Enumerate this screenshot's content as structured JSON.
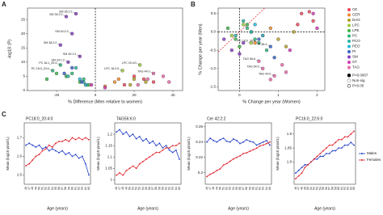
{
  "chart_data": [
    {
      "type": "scatter",
      "panel": "A",
      "xlabel": "% Difference (Men relative to women)",
      "ylabel": "-log10 (P)",
      "xlim": [
        -35,
        45
      ],
      "xticks": [
        -20,
        0,
        20,
        40
      ],
      "ylim": [
        0,
        29
      ],
      "yticks": [
        0,
        5,
        10,
        15,
        20,
        25
      ],
      "reference_lines": {
        "x": 0
      },
      "series": [
        {
          "color": "#e8485b",
          "x": [
            25,
            30,
            15,
            20
          ],
          "y": [
            4,
            3,
            2,
            5
          ]
        },
        {
          "color": "#f08a2c",
          "x": [
            10,
            -5,
            5,
            12
          ],
          "y": [
            3,
            2,
            1.5,
            4
          ]
        },
        {
          "color": "#b5a22a",
          "x": [
            20,
            26,
            18
          ],
          "y": [
            4,
            3,
            2
          ]
        },
        {
          "color": "#9ccc3c",
          "x": [
            23,
            14,
            -3
          ],
          "y": [
            9,
            7,
            2
          ],
          "labels": [
            "LPC 20:4:0",
            "LPC 18:2:0",
            null
          ]
        },
        {
          "color": "#3cb54a",
          "x": [
            -20,
            -25,
            -15,
            -8
          ],
          "y": [
            6,
            4,
            5,
            3
          ]
        },
        {
          "color": "#2fb57a",
          "x": [
            -18,
            -22,
            -12,
            -6,
            -4
          ],
          "y": [
            9,
            7,
            6,
            4,
            2
          ],
          "labels": [
            "PC 16:1_20:4",
            "PC 18:0_20:4",
            null,
            null,
            null
          ]
        },
        {
          "color": "#2ab3a6",
          "x": [
            -10,
            -14,
            -6
          ],
          "y": [
            8,
            5,
            3
          ]
        },
        {
          "color": "#29b6d8",
          "x": [
            -5,
            -8
          ],
          "y": [
            2,
            4
          ]
        },
        {
          "color": "#3a63c8",
          "x": [
            -12,
            -16,
            -7
          ],
          "y": [
            8,
            6,
            3
          ]
        },
        {
          "color": "#8a3fc4",
          "x": [
            -15,
            -10,
            -12,
            -18,
            -8,
            -14
          ],
          "y": [
            26,
            27,
            20,
            16,
            12,
            10
          ],
          "labels": [
            "SM 34:2:2",
            "SM 36:2:2",
            "SM 40:2:2",
            "SM 38:2:2",
            "SM 40:1:2",
            "SM 34:1:2"
          ]
        },
        {
          "color": "#d13bb5",
          "x": [
            5,
            -2
          ],
          "y": [
            1,
            2
          ]
        },
        {
          "color": "#e86aa9",
          "x": [
            30,
            35,
            27,
            38,
            22
          ],
          "y": [
            6,
            5,
            4,
            3,
            2
          ],
          "labels": [
            "TAG 44:0",
            null,
            null,
            null,
            null
          ]
        }
      ]
    },
    {
      "type": "scatter",
      "panel": "B",
      "xlabel": "% Change per year (Women)",
      "ylabel": "% Change per year (Men)",
      "xlim": [
        -0.55,
        2.2
      ],
      "xticks": [
        0,
        1,
        2
      ],
      "ylim": [
        -1.6,
        0.65
      ],
      "yticks": [
        0.5,
        {
          "value": 0,
          "label": "0.0"
        },
        -0.5,
        {
          "value": -1,
          "label": "-1.0"
        },
        -1.5
      ],
      "reference_lines": {
        "x": 0,
        "y": 0
      },
      "identity_line": true,
      "legend": "right",
      "marker_legend": [
        "P<0.0007",
        "Non-sig",
        "P<0.05"
      ],
      "series": [
        {
          "name": "CE",
          "color": "#e8485b",
          "x": [
            1.6,
            1.8,
            1.9,
            1.5
          ],
          "y": [
            0.5,
            0.55,
            0.3,
            0.2
          ]
        },
        {
          "name": "CER",
          "color": "#f08a2c",
          "x": [
            0.6,
            0.4,
            0.8
          ],
          "y": [
            -0.1,
            -0.3,
            0.1
          ]
        },
        {
          "name": "DAG",
          "color": "#b5a22a",
          "x": [
            1.2,
            1.0,
            1.4
          ],
          "y": [
            -0.4,
            -0.2,
            0.0
          ]
        },
        {
          "name": "LPC",
          "color": "#9ccc3c",
          "x": [
            -0.2,
            0.1,
            0.3
          ],
          "y": [
            -0.1,
            0.2,
            -0.3
          ]
        },
        {
          "name": "LPE",
          "color": "#3cb54a",
          "x": [
            -0.3,
            -0.1,
            0.2,
            0.0
          ],
          "y": [
            0.1,
            -0.2,
            0.2,
            -0.4
          ]
        },
        {
          "name": "PC",
          "color": "#2fb57a",
          "x": [
            0.3,
            0.5,
            0.2,
            0.7,
            0.4
          ],
          "y": [
            0.0,
            -0.3,
            0.1,
            -0.5,
            -0.2
          ],
          "labels": [
            null,
            "PC 16:0_20:4",
            null,
            null,
            null
          ]
        },
        {
          "name": "PCO",
          "color": "#2ab3a6",
          "x": [
            0.1,
            0.3,
            -0.1
          ],
          "y": [
            0.3,
            0.0,
            -0.1
          ]
        },
        {
          "name": "PEO",
          "color": "#29b6d8",
          "x": [
            0.4,
            0.6
          ],
          "y": [
            0.2,
            -0.1
          ]
        },
        {
          "name": "PI",
          "color": "#3a63c8",
          "x": [
            0.8,
            0.9,
            0.5
          ],
          "y": [
            -0.4,
            -0.7,
            -0.2
          ],
          "labels": [
            "PI 38:4",
            null,
            null
          ]
        },
        {
          "name": "SM",
          "color": "#8a3fc4",
          "x": [
            -0.4,
            -0.2,
            0.0,
            0.1
          ],
          "y": [
            -0.2,
            -0.5,
            -0.6,
            -0.3
          ]
        },
        {
          "name": "ST",
          "color": "#d13bb5",
          "x": [
            1.9,
            2.0,
            1.3
          ],
          "y": [
            0.5,
            0.1,
            -0.5
          ]
        },
        {
          "name": "TAG",
          "color": "#e86aa9",
          "x": [
            0.6,
            0.9,
            1.1,
            0.5,
            0.8,
            1.2
          ],
          "y": [
            -1.0,
            -1.2,
            -0.9,
            -0.8,
            -1.3,
            -1.1
          ],
          "labels": [
            "TAG 54:0",
            "TAG 44:0",
            null,
            "TAG 56:6",
            null,
            null
          ]
        }
      ]
    },
    {
      "type": "line",
      "panel": "C",
      "title": "PC18:0_20:4:0",
      "xlabel": "Age (years)",
      "ylabel": "Mean (log10 pmol/L)",
      "categories": [
        "46",
        "47",
        "48",
        "49",
        "50",
        "51",
        "52",
        "53",
        "54",
        "55",
        "56",
        "57",
        "58",
        "59",
        "60",
        "61",
        "62",
        "63",
        "64",
        "65"
      ],
      "ylim": [
        1.45,
        1.78
      ],
      "yticks": [
        1.5,
        1.6,
        1.7
      ],
      "series": [
        {
          "color": "#2340c8",
          "values": [
            1.66,
            1.67,
            1.66,
            1.65,
            1.66,
            1.64,
            1.65,
            1.63,
            1.64,
            1.63,
            1.62,
            1.63,
            1.61,
            1.62,
            1.6,
            1.61,
            1.59,
            1.6,
            1.56,
            1.5
          ]
        },
        {
          "color": "#e0242c",
          "values": [
            1.55,
            1.56,
            1.58,
            1.6,
            1.61,
            1.63,
            1.64,
            1.66,
            1.65,
            1.67,
            1.68,
            1.68,
            1.69,
            1.68,
            1.7,
            1.69,
            1.7,
            1.69,
            1.7,
            1.69
          ]
        }
      ]
    },
    {
      "type": "line",
      "title": "TAG56:6:0",
      "xlabel": "Age (years)",
      "ylabel": "Mean (log10 pmol/L)",
      "categories": [
        "46",
        "47",
        "48",
        "49",
        "50",
        "51",
        "52",
        "53",
        "54",
        "55",
        "56",
        "57",
        "58",
        "59",
        "60",
        "61",
        "62",
        "63",
        "64",
        "65"
      ],
      "ylim": [
        0.98,
        1.25
      ],
      "yticks": [
        1.0,
        1.05,
        1.1,
        1.15,
        1.2
      ],
      "series": [
        {
          "color": "#2340c8",
          "values": [
            1.21,
            1.22,
            1.2,
            1.21,
            1.19,
            1.2,
            1.18,
            1.19,
            1.17,
            1.18,
            1.16,
            1.17,
            1.15,
            1.16,
            1.14,
            1.15,
            1.13,
            1.12,
            1.13,
            1.09
          ]
        },
        {
          "color": "#e0242c",
          "values": [
            1.02,
            1.03,
            1.02,
            1.04,
            1.05,
            1.06,
            1.05,
            1.07,
            1.08,
            1.09,
            1.1,
            1.11,
            1.12,
            1.12,
            1.13,
            1.14,
            1.14,
            1.15,
            1.15,
            1.16
          ]
        }
      ]
    },
    {
      "type": "line",
      "title": "Cer 42:2:2",
      "xlabel": "Age (years)",
      "ylabel": "Mean (log10 pmol/L)",
      "categories": [
        "46",
        "47",
        "48",
        "49",
        "50",
        "51",
        "52",
        "53",
        "54",
        "55",
        "56",
        "57",
        "58",
        "59",
        "60",
        "61",
        "62",
        "63",
        "64",
        "65"
      ],
      "ylim": [
        0.185,
        0.265
      ],
      "yticks": [
        0.2,
        0.22,
        0.24,
        0.26
      ],
      "series": [
        {
          "color": "#2340c8",
          "values": [
            0.24,
            0.245,
            0.242,
            0.24,
            0.243,
            0.245,
            0.241,
            0.24,
            0.244,
            0.242,
            0.238,
            0.24,
            0.243,
            0.241,
            0.24,
            0.236,
            0.238,
            0.24,
            0.242,
            0.236
          ]
        },
        {
          "color": "#e0242c",
          "values": [
            0.195,
            0.198,
            0.2,
            0.203,
            0.205,
            0.21,
            0.212,
            0.215,
            0.218,
            0.22,
            0.222,
            0.225,
            0.226,
            0.228,
            0.23,
            0.232,
            0.235,
            0.236,
            0.238,
            0.24
          ]
        }
      ]
    },
    {
      "type": "line",
      "title": "PC16:0_22:6:0",
      "xlabel": "Age (years)",
      "ylabel": "Mean (log10 pmol/L)",
      "legend": "right",
      "categories": [
        "46",
        "47",
        "48",
        "49",
        "50",
        "51",
        "52",
        "53",
        "54",
        "55",
        "56",
        "57",
        "58",
        "59",
        "60",
        "61",
        "62",
        "63",
        "64",
        "65"
      ],
      "ylim": [
        1.72,
        1.94
      ],
      "yticks": [
        1.8,
        1.85,
        1.9
      ],
      "series": [
        {
          "name": "Males",
          "color": "#2340c8",
          "values": [
            1.76,
            1.77,
            1.78,
            1.79,
            1.79,
            1.8,
            1.81,
            1.81,
            1.82,
            1.82,
            1.83,
            1.83,
            1.84,
            1.84,
            1.85,
            1.85,
            1.86,
            1.86,
            1.87,
            1.86
          ]
        },
        {
          "name": "Females",
          "color": "#e0242c",
          "values": [
            1.74,
            1.75,
            1.76,
            1.78,
            1.79,
            1.8,
            1.81,
            1.82,
            1.83,
            1.84,
            1.85,
            1.86,
            1.86,
            1.87,
            1.88,
            1.88,
            1.89,
            1.89,
            1.9,
            1.91
          ]
        }
      ]
    }
  ]
}
